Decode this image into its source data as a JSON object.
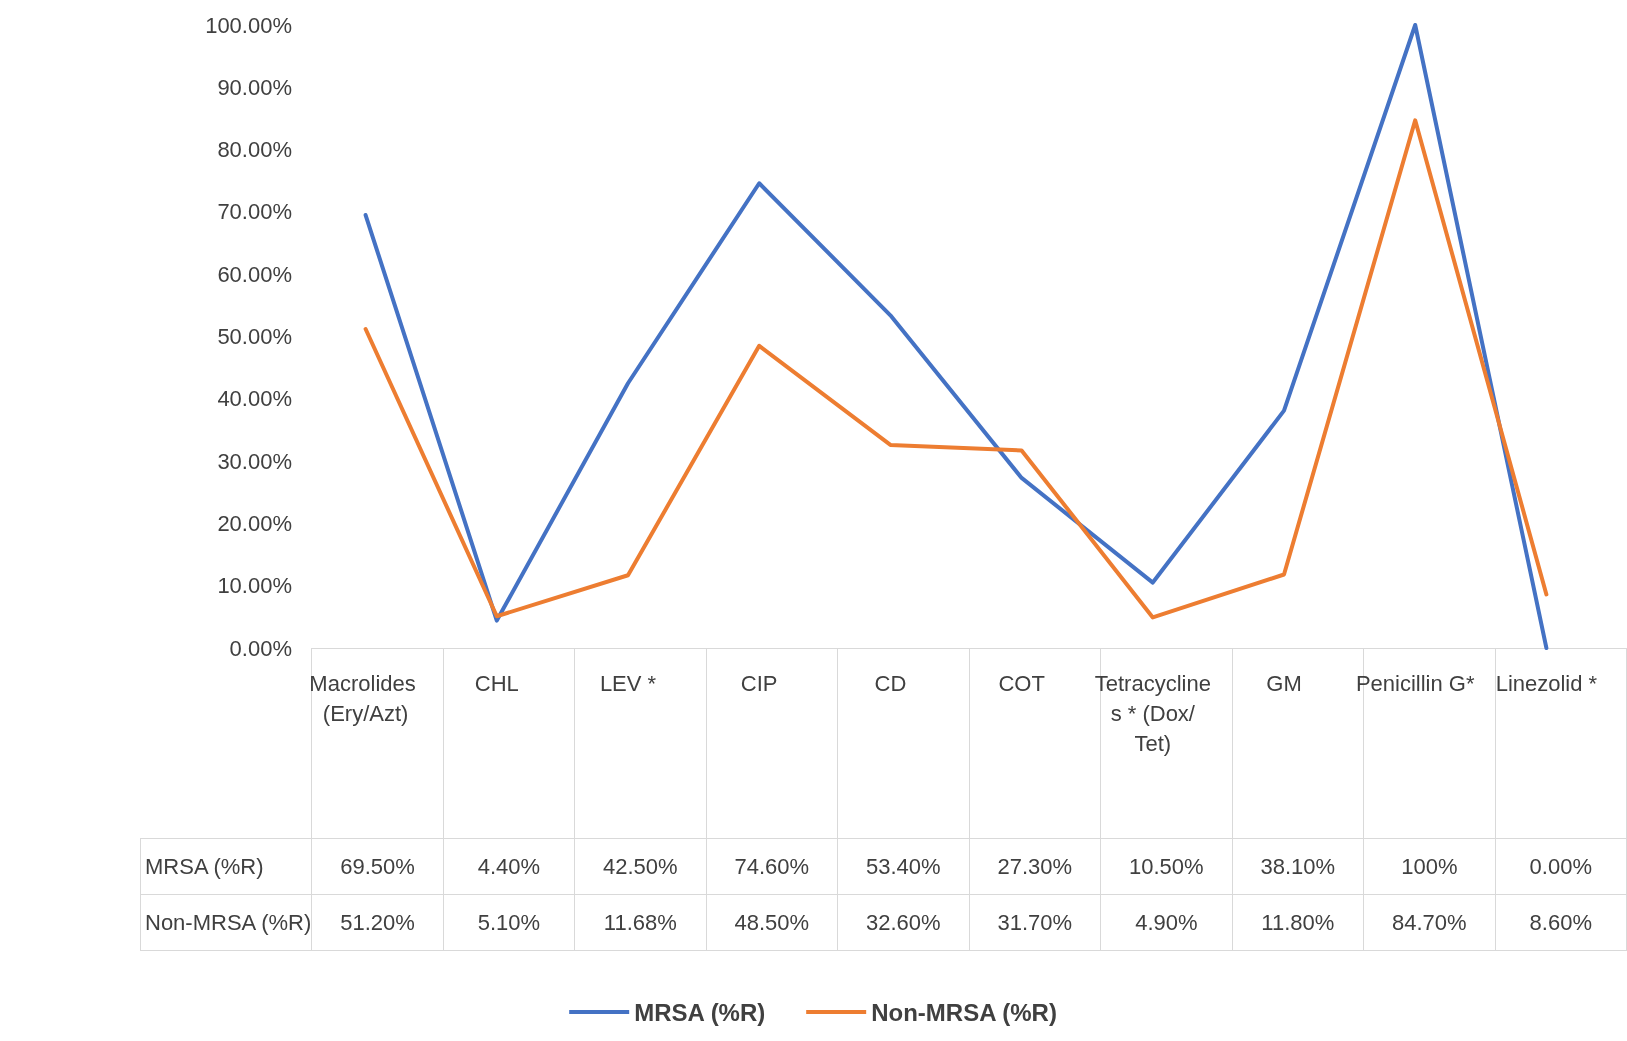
{
  "chart_data": {
    "type": "line",
    "categories": [
      "Macrolides (Ery/Azt)",
      "CHL",
      "LEV *",
      "CIP",
      "CD",
      "COT",
      "Tetracyclines * (Dox/Tet)",
      "GM",
      "Penicillin G*",
      "Linezolid *"
    ],
    "series": [
      {
        "name": "MRSA (%R)",
        "color": "#4472c4",
        "values": [
          69.5,
          4.4,
          42.5,
          74.6,
          53.4,
          27.3,
          10.5,
          38.1,
          100,
          0
        ],
        "value_labels": [
          "69.50%",
          "4.40%",
          "42.50%",
          "74.60%",
          "53.40%",
          "27.30%",
          "10.50%",
          "38.10%",
          "100%",
          "0.00%"
        ]
      },
      {
        "name": "Non-MRSA (%R)",
        "color": "#ed7d31",
        "values": [
          51.2,
          5.1,
          11.68,
          48.5,
          32.6,
          31.7,
          4.9,
          11.8,
          84.7,
          8.6
        ],
        "value_labels": [
          "51.20%",
          "5.10%",
          "11.68%",
          "48.50%",
          "32.60%",
          "31.70%",
          "4.90%",
          "11.80%",
          "84.70%",
          "8.60%"
        ]
      }
    ],
    "ylim": [
      0,
      100
    ],
    "yticks": [
      {
        "value": 0,
        "label": "0.00%"
      },
      {
        "value": 10,
        "label": "10.00%"
      },
      {
        "value": 20,
        "label": "20.00%"
      },
      {
        "value": 30,
        "label": "30.00%"
      },
      {
        "value": 40,
        "label": "40.00%"
      },
      {
        "value": 50,
        "label": "50.00%"
      },
      {
        "value": 60,
        "label": "60.00%"
      },
      {
        "value": 70,
        "label": "70.00%"
      },
      {
        "value": 80,
        "label": "80.00%"
      },
      {
        "value": 90,
        "label": "90.00%"
      },
      {
        "value": 100,
        "label": "100.00%"
      }
    ],
    "grid": false,
    "legend": "bottom",
    "marker": "none",
    "line_style": "solid"
  }
}
